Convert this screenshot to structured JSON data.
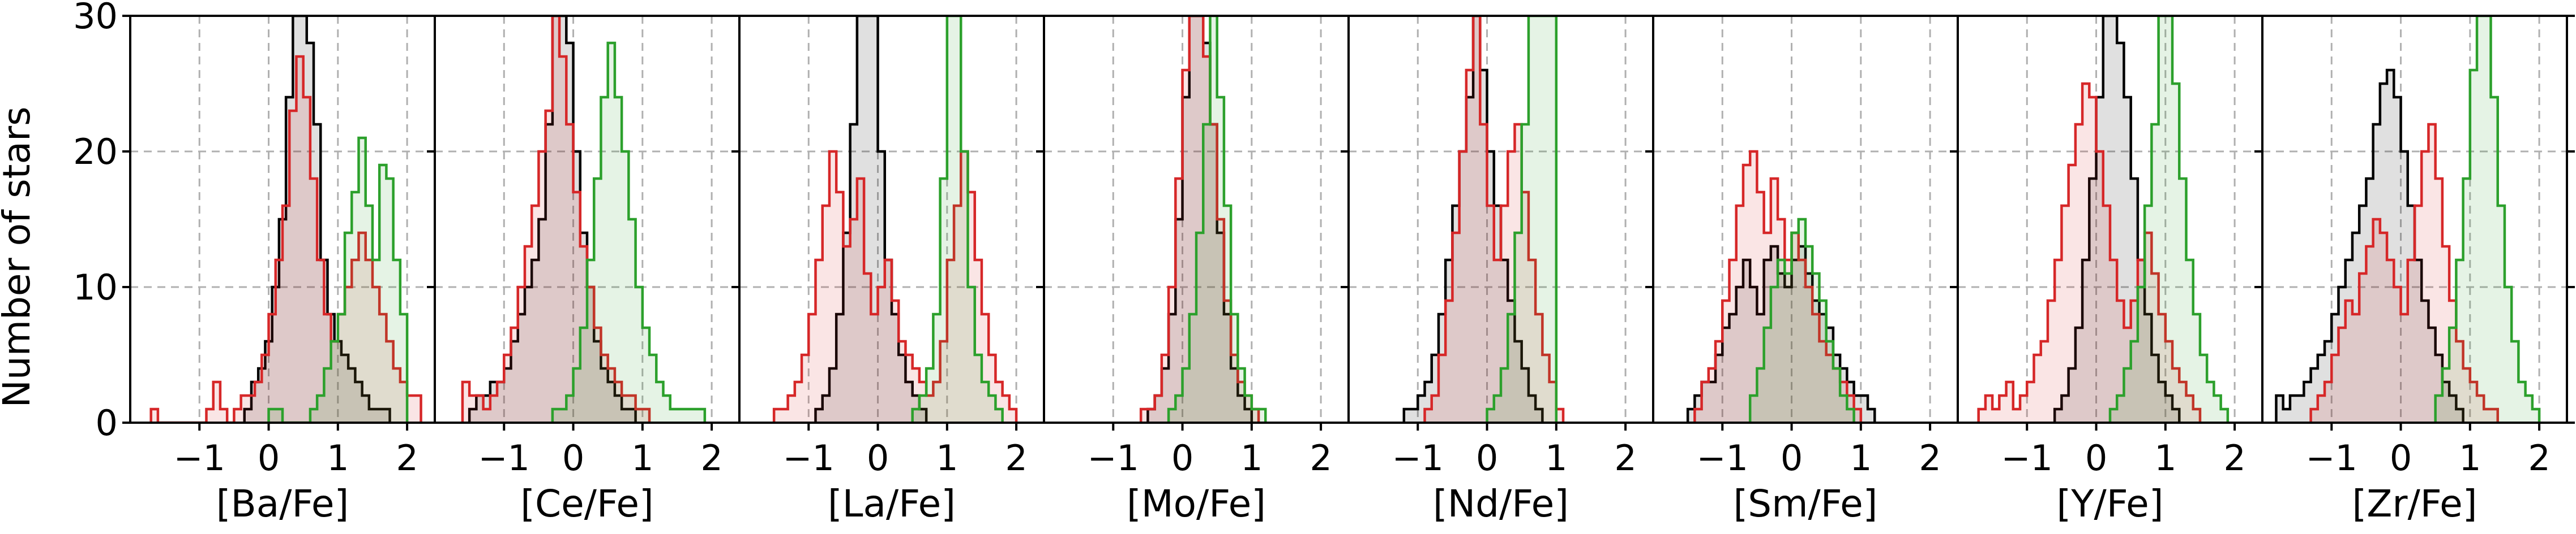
{
  "chart_data": {
    "type": "histogram",
    "ylabel": "Number of stars",
    "ylim": [
      0,
      30
    ],
    "yticks": [
      0,
      10,
      20,
      30
    ],
    "xlim": [
      -2.0,
      2.4
    ],
    "xticks": [
      -1,
      0,
      1,
      2
    ],
    "xtick_labels": [
      "−1",
      "0",
      "1",
      "2"
    ],
    "grid": true,
    "colors": {
      "black": "#000000",
      "red": "#d62728",
      "green": "#2ca02c"
    },
    "panels": [
      {
        "xlabel": "[Ba/Fe]",
        "series": [
          {
            "color": "black",
            "start": -0.35,
            "width": 0.1,
            "counts": [
              1,
              3,
              4,
              6,
              10,
              15,
              24,
              30,
              30,
              28,
              22,
              12,
              8,
              6,
              5,
              4,
              3,
              2,
              1,
              1,
              1
            ]
          },
          {
            "color": "red",
            "start": -1.7,
            "width": 0.1,
            "counts": [
              1,
              0,
              0,
              0,
              0,
              0,
              0,
              0,
              1,
              3,
              1,
              0,
              1,
              2,
              2,
              3,
              5,
              8,
              12,
              16,
              23,
              27,
              24,
              18,
              12,
              8,
              6,
              8,
              10,
              12,
              14,
              12,
              10,
              8,
              6,
              4,
              3,
              2,
              2
            ]
          },
          {
            "color": "green",
            "start": 0.0,
            "width": 0.1,
            "counts": [
              1,
              1,
              0,
              0,
              0,
              0,
              1,
              2,
              4,
              6,
              8,
              14,
              17,
              21,
              16,
              12,
              19,
              18,
              12,
              8
            ]
          }
        ]
      },
      {
        "xlabel": "[Ce/Fe]",
        "series": [
          {
            "color": "black",
            "start": -1.5,
            "width": 0.1,
            "counts": [
              1,
              2,
              2,
              3,
              3,
              4,
              6,
              8,
              10,
              12,
              15,
              22,
              30,
              30,
              28,
              20,
              14,
              10,
              6,
              4,
              3,
              2,
              1,
              1
            ]
          },
          {
            "color": "red",
            "start": -1.6,
            "width": 0.1,
            "counts": [
              3,
              2,
              2,
              1,
              2,
              3,
              5,
              7,
              10,
              13,
              16,
              20,
              23,
              30,
              27,
              22,
              17,
              13,
              10,
              7,
              5,
              4,
              3,
              2,
              2,
              1,
              1
            ]
          },
          {
            "color": "green",
            "start": -0.3,
            "width": 0.1,
            "counts": [
              1,
              1,
              2,
              4,
              7,
              12,
              18,
              24,
              28,
              24,
              20,
              15,
              10,
              7,
              5,
              3,
              2,
              1,
              1,
              1,
              1,
              1
            ]
          }
        ]
      },
      {
        "xlabel": "[La/Fe]",
        "series": [
          {
            "color": "black",
            "start": -0.9,
            "width": 0.1,
            "counts": [
              1,
              2,
              4,
              8,
              14,
              22,
              30,
              30,
              30,
              20,
              12,
              8,
              5,
              3,
              2,
              1
            ]
          },
          {
            "color": "red",
            "start": -1.5,
            "width": 0.1,
            "counts": [
              1,
              1,
              2,
              3,
              5,
              8,
              12,
              16,
              20,
              17,
              13,
              15,
              18,
              11,
              8,
              10,
              12,
              9,
              6,
              5,
              4,
              3,
              2,
              3,
              6,
              12,
              16,
              20,
              17,
              12,
              8,
              5,
              3,
              2,
              1
            ]
          },
          {
            "color": "green",
            "start": 0.5,
            "width": 0.1,
            "counts": [
              1,
              2,
              4,
              8,
              18,
              30,
              30,
              20,
              10,
              5,
              3,
              2,
              1
            ]
          }
        ]
      },
      {
        "xlabel": "[Mo/Fe]",
        "series": [
          {
            "color": "black",
            "start": -0.5,
            "width": 0.1,
            "counts": [
              1,
              2,
              4,
              8,
              15,
              24,
              30,
              30,
              28,
              22,
              14,
              8,
              4,
              2,
              1
            ]
          },
          {
            "color": "red",
            "start": -0.6,
            "width": 0.1,
            "counts": [
              1,
              1,
              2,
              5,
              10,
              18,
              26,
              30,
              30,
              27,
              22,
              15,
              9,
              5,
              3,
              2,
              1
            ]
          },
          {
            "color": "green",
            "start": -0.2,
            "width": 0.1,
            "counts": [
              1,
              2,
              4,
              8,
              14,
              22,
              30,
              24,
              16,
              8,
              4,
              2,
              1,
              1
            ]
          }
        ]
      },
      {
        "xlabel": "[Nd/Fe]",
        "series": [
          {
            "color": "black",
            "start": -1.2,
            "width": 0.1,
            "counts": [
              1,
              1,
              2,
              3,
              5,
              8,
              12,
              16,
              20,
              24,
              30,
              26,
              20,
              16,
              12,
              9,
              6,
              4,
              2,
              1
            ]
          },
          {
            "color": "red",
            "start": -0.9,
            "width": 0.1,
            "counts": [
              1,
              2,
              5,
              9,
              14,
              20,
              26,
              30,
              22,
              16,
              12,
              16,
              20,
              22,
              17,
              12,
              8,
              5,
              3,
              1
            ]
          },
          {
            "color": "green",
            "start": 0.0,
            "width": 0.1,
            "counts": [
              1,
              2,
              4,
              8,
              14,
              22,
              30,
              30,
              30,
              30
            ]
          }
        ]
      },
      {
        "xlabel": "[Sm/Fe]",
        "series": [
          {
            "color": "black",
            "start": -1.5,
            "width": 0.1,
            "counts": [
              1,
              2,
              3,
              3,
              5,
              7,
              8,
              10,
              12,
              10,
              8,
              12,
              13,
              11,
              10,
              12,
              13,
              11,
              9,
              8,
              7,
              5,
              4,
              3,
              2,
              2,
              1
            ]
          },
          {
            "color": "red",
            "start": -1.4,
            "width": 0.1,
            "counts": [
              1,
              3,
              4,
              6,
              9,
              12,
              16,
              19,
              20,
              17,
              14,
              18,
              15,
              12,
              14,
              12,
              10,
              8,
              6,
              5,
              4,
              3,
              2,
              1
            ]
          },
          {
            "color": "green",
            "start": -0.6,
            "width": 0.1,
            "counts": [
              2,
              4,
              7,
              10,
              12,
              11,
              14,
              15,
              13,
              11,
              9,
              6,
              4,
              2,
              1
            ]
          }
        ]
      },
      {
        "xlabel": "[Y/Fe]",
        "series": [
          {
            "color": "black",
            "start": -0.6,
            "width": 0.1,
            "counts": [
              1,
              2,
              4,
              7,
              12,
              18,
              24,
              30,
              30,
              28,
              24,
              18,
              12,
              8,
              5,
              3,
              2,
              1
            ]
          },
          {
            "color": "red",
            "start": -1.7,
            "width": 0.1,
            "counts": [
              1,
              2,
              1,
              2,
              3,
              1,
              2,
              3,
              5,
              6,
              9,
              12,
              16,
              19,
              22,
              25,
              24,
              20,
              16,
              12,
              9,
              7,
              9,
              12,
              14,
              11,
              8,
              6,
              4,
              3,
              2,
              1
            ]
          },
          {
            "color": "green",
            "start": 0.2,
            "width": 0.1,
            "counts": [
              1,
              2,
              4,
              6,
              10,
              16,
              22,
              30,
              30,
              25,
              18,
              12,
              8,
              5,
              3,
              2,
              1
            ]
          }
        ]
      },
      {
        "xlabel": "[Zr/Fe]",
        "series": [
          {
            "color": "black",
            "start": -1.8,
            "width": 0.1,
            "counts": [
              2,
              1,
              2,
              2,
              3,
              4,
              5,
              6,
              8,
              10,
              12,
              14,
              16,
              18,
              22,
              25,
              26,
              24,
              20,
              16,
              12,
              9,
              7,
              5,
              3,
              2,
              1
            ]
          },
          {
            "color": "red",
            "start": -1.3,
            "width": 0.1,
            "counts": [
              1,
              2,
              3,
              5,
              7,
              9,
              8,
              11,
              13,
              15,
              14,
              12,
              10,
              8,
              12,
              16,
              20,
              22,
              18,
              13,
              9,
              6,
              4,
              3,
              2,
              1,
              1
            ]
          },
          {
            "color": "green",
            "start": 0.5,
            "width": 0.1,
            "counts": [
              2,
              4,
              7,
              12,
              18,
              26,
              30,
              30,
              24,
              16,
              10,
              6,
              3,
              2,
              1
            ]
          }
        ]
      }
    ]
  }
}
